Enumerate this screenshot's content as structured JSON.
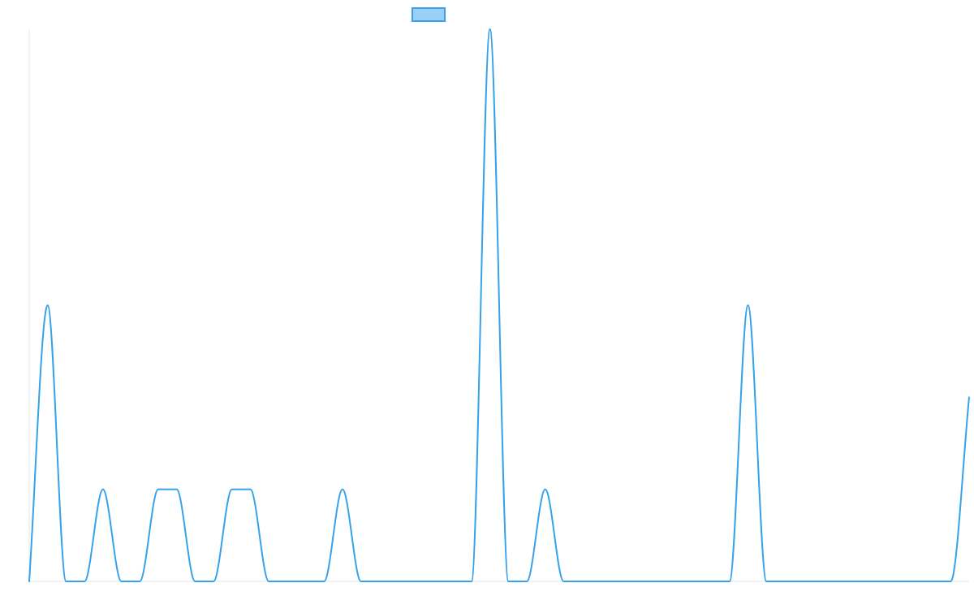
{
  "chart_data": {
    "type": "line",
    "title": "",
    "xlabel": "",
    "ylabel": "",
    "ylim": [
      0,
      6
    ],
    "grid": false,
    "legend": {
      "position": "top-center",
      "entries": [
        {
          "label": "",
          "fill_color": "#9ad0f5",
          "stroke_color": "#36a2eb"
        }
      ]
    },
    "series": [
      {
        "color": "#36a2eb",
        "fill_color": "#9ad0f5",
        "x": [
          0,
          1,
          2,
          3,
          4,
          5,
          6,
          7,
          8,
          9,
          10,
          11,
          12,
          13,
          14,
          15,
          16,
          17,
          18,
          19,
          20,
          21,
          22,
          23,
          24,
          25,
          26,
          27,
          28,
          29,
          30,
          31,
          32,
          33,
          34,
          35,
          36,
          37,
          38,
          39,
          40,
          41,
          42,
          43,
          44,
          45,
          46,
          47,
          48,
          49,
          50,
          51
        ],
        "values": [
          0,
          3,
          0,
          0,
          1,
          0,
          0,
          1,
          1,
          0,
          0,
          1,
          1,
          0,
          0,
          0,
          0,
          1,
          0,
          0,
          0,
          0,
          0,
          0,
          0,
          6,
          0,
          0,
          1,
          0,
          0,
          0,
          0,
          0,
          0,
          0,
          0,
          0,
          0,
          3,
          0,
          0,
          0,
          0,
          0,
          0,
          0,
          0,
          0,
          0,
          0,
          2
        ]
      }
    ]
  }
}
